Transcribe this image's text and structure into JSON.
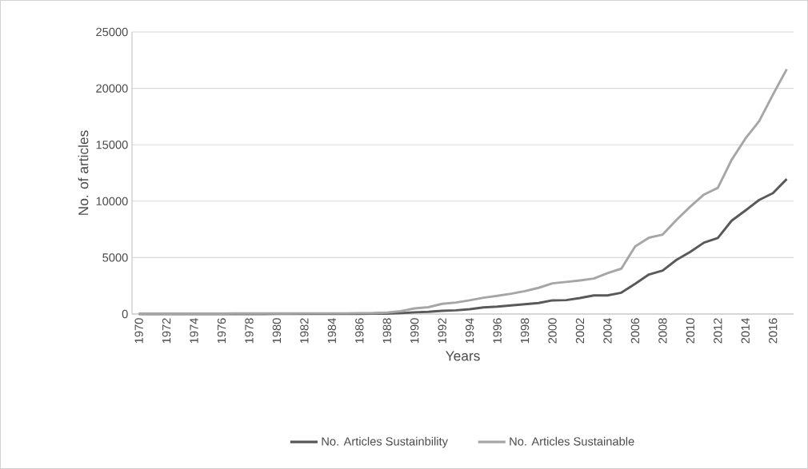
{
  "chart_data": {
    "type": "line",
    "xlabel": "Years",
    "ylabel": "No. of articles",
    "categories": [
      "1970",
      null,
      "1972",
      null,
      "1974",
      null,
      "1976",
      null,
      "1978",
      null,
      "1980",
      null,
      "1982",
      null,
      "1984",
      null,
      "1986",
      null,
      "1988",
      null,
      "1990",
      null,
      "1992",
      null,
      "1994",
      null,
      "1996",
      null,
      "1998",
      null,
      "2000",
      null,
      "2002",
      null,
      "2004",
      null,
      "2006",
      null,
      "2008",
      null,
      "2010",
      null,
      "2012",
      null,
      "2014",
      null,
      "2016",
      null
    ],
    "series": [
      {
        "name": "No. Articles Sustainbility",
        "color": "#595959",
        "values": [
          0,
          0,
          0,
          0,
          0,
          0,
          5,
          5,
          5,
          5,
          10,
          10,
          10,
          10,
          10,
          15,
          20,
          25,
          30,
          80,
          150,
          200,
          280,
          330,
          430,
          590,
          660,
          760,
          870,
          970,
          1210,
          1230,
          1420,
          1650,
          1650,
          1890,
          2670,
          3500,
          3850,
          4800,
          5510,
          6330,
          6740,
          8270,
          9170,
          10110,
          10710,
          11960
        ]
      },
      {
        "name": "No. Articles Sustainable",
        "color": "#a6a6a6",
        "values": [
          40,
          30,
          40,
          40,
          40,
          40,
          40,
          50,
          50,
          50,
          50,
          50,
          60,
          60,
          60,
          60,
          80,
          90,
          130,
          250,
          500,
          600,
          900,
          1020,
          1210,
          1440,
          1610,
          1800,
          2030,
          2320,
          2720,
          2840,
          2980,
          3140,
          3620,
          4020,
          5980,
          6760,
          7040,
          8340,
          9520,
          10590,
          11180,
          13660,
          15550,
          17090,
          19450,
          21700
        ]
      }
    ],
    "ylim": [
      0,
      25000
    ],
    "yticks": [
      0,
      5000,
      10000,
      15000,
      20000,
      25000
    ],
    "grid": "y",
    "legend": "bottom",
    "marker": "none",
    "line_style": "solid"
  }
}
